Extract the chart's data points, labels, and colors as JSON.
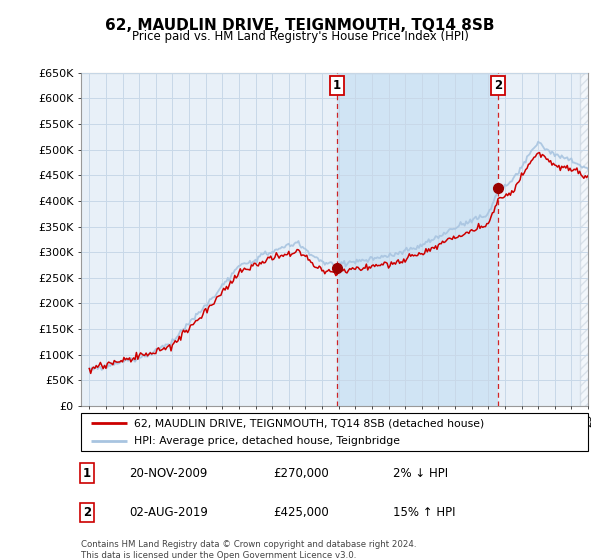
{
  "title": "62, MAUDLIN DRIVE, TEIGNMOUTH, TQ14 8SB",
  "subtitle": "Price paid vs. HM Land Registry's House Price Index (HPI)",
  "legend_line1": "62, MAUDLIN DRIVE, TEIGNMOUTH, TQ14 8SB (detached house)",
  "legend_line2": "HPI: Average price, detached house, Teignbridge",
  "annotation1_label": "1",
  "annotation1_date": "20-NOV-2009",
  "annotation1_price": "£270,000",
  "annotation1_hpi": "2% ↓ HPI",
  "annotation2_label": "2",
  "annotation2_date": "02-AUG-2019",
  "annotation2_price": "£425,000",
  "annotation2_hpi": "15% ↑ HPI",
  "footer": "Contains HM Land Registry data © Crown copyright and database right 2024.\nThis data is licensed under the Open Government Licence v3.0.",
  "hpi_color": "#a8c4e0",
  "price_color": "#cc0000",
  "marker_color": "#990000",
  "vline_color": "#cc0000",
  "grid_color": "#c8d8e8",
  "plot_bg_color": "#e8f0f8",
  "shade_between_color": "#d0e4f4",
  "hatch_color": "#c0ccd8",
  "ylim": [
    0,
    650000
  ],
  "ytick_max": 650000,
  "ytick_step": 50000,
  "sale1_x": 2009.9,
  "sale1_y": 270000,
  "sale2_x": 2019.6,
  "sale2_y": 425000,
  "xmin": 1995,
  "xmax": 2025,
  "x_start_data": 1995,
  "x_end_data": 2025
}
